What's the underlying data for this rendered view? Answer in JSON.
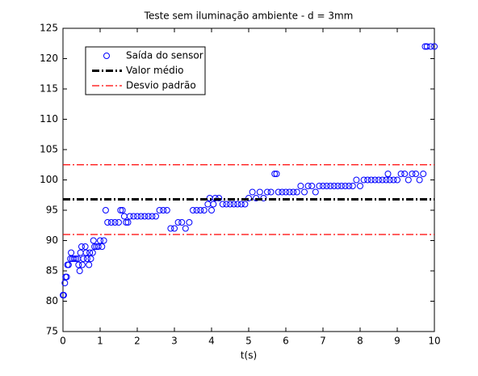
{
  "chart_data": {
    "type": "scatter",
    "title": "Teste sem iluminação ambiente - d = 3mm",
    "x_label": "t(s)",
    "xlim": [
      0,
      10
    ],
    "xticks": [
      0,
      1,
      2,
      3,
      4,
      5,
      6,
      7,
      8,
      9,
      10
    ],
    "ylim": [
      75,
      125
    ],
    "yticks": [
      75,
      80,
      85,
      90,
      95,
      100,
      105,
      110,
      115,
      120,
      125
    ],
    "legend_position": "upper-left",
    "series": [
      {
        "name": "Saída do sensor",
        "kind": "scatter",
        "color": "#0000ff",
        "x": [
          0,
          0.02,
          0.05,
          0.07,
          0.1,
          0.12,
          0.15,
          0.2,
          0.22,
          0.25,
          0.3,
          0.35,
          0.4,
          0.42,
          0.45,
          0.47,
          0.5,
          0.52,
          0.55,
          0.6,
          0.62,
          0.65,
          0.7,
          0.72,
          0.75,
          0.8,
          0.82,
          0.85,
          0.9,
          0.95,
          1.0,
          1.05,
          1.1,
          1.15,
          1.2,
          1.3,
          1.4,
          1.5,
          1.55,
          1.6,
          1.65,
          1.7,
          1.75,
          1.8,
          1.9,
          2.0,
          2.1,
          2.2,
          2.3,
          2.4,
          2.5,
          2.6,
          2.7,
          2.8,
          2.9,
          3.0,
          3.1,
          3.2,
          3.3,
          3.4,
          3.5,
          3.6,
          3.7,
          3.8,
          3.9,
          3.95,
          4.0,
          4.05,
          4.1,
          4.2,
          4.3,
          4.4,
          4.5,
          4.6,
          4.7,
          4.8,
          4.9,
          5.0,
          5.1,
          5.2,
          5.3,
          5.4,
          5.5,
          5.6,
          5.7,
          5.75,
          5.8,
          5.9,
          6.0,
          6.1,
          6.2,
          6.3,
          6.4,
          6.5,
          6.6,
          6.7,
          6.8,
          6.9,
          7.0,
          7.1,
          7.2,
          7.3,
          7.4,
          7.5,
          7.6,
          7.7,
          7.8,
          7.9,
          8.0,
          8.1,
          8.2,
          8.3,
          8.4,
          8.5,
          8.6,
          8.7,
          8.75,
          8.8,
          8.9,
          9.0,
          9.1,
          9.2,
          9.3,
          9.4,
          9.5,
          9.6,
          9.7,
          9.75,
          9.8,
          9.9,
          10
        ],
        "values": [
          81,
          81,
          83,
          84,
          84,
          86,
          86,
          87,
          88,
          87,
          87,
          87,
          87,
          86,
          85,
          88,
          89,
          86,
          87,
          89,
          88,
          87,
          86,
          88,
          87,
          88,
          90,
          89,
          89,
          89,
          90,
          89,
          90,
          95,
          93,
          93,
          93,
          93,
          95,
          95,
          94,
          93,
          93,
          94,
          94,
          94,
          94,
          94,
          94,
          94,
          94,
          95,
          95,
          95,
          92,
          92,
          93,
          93,
          92,
          93,
          95,
          95,
          95,
          95,
          96,
          97,
          95,
          96,
          97,
          97,
          96,
          96,
          96,
          96,
          96,
          96,
          96,
          97,
          98,
          97,
          98,
          97,
          98,
          98,
          101,
          101,
          98,
          98,
          98,
          98,
          98,
          98,
          99,
          98,
          99,
          99,
          98,
          99,
          99,
          99,
          99,
          99,
          99,
          99,
          99,
          99,
          99,
          100,
          99,
          100,
          100,
          100,
          100,
          100,
          100,
          100,
          101,
          100,
          100,
          100,
          101,
          101,
          100,
          101,
          101,
          100,
          101,
          122,
          122,
          122,
          122
        ]
      },
      {
        "name": "Valor médio",
        "kind": "line",
        "color": "#000000",
        "x": [
          0,
          10
        ],
        "values": [
          96.8,
          96.8
        ]
      },
      {
        "name": "Desvio padrão",
        "kind": "line",
        "color": "#ff0000",
        "x": [
          0,
          10,
          0,
          0,
          10
        ],
        "values": [
          102.5,
          102.5,
          null,
          91,
          91
        ]
      }
    ]
  }
}
